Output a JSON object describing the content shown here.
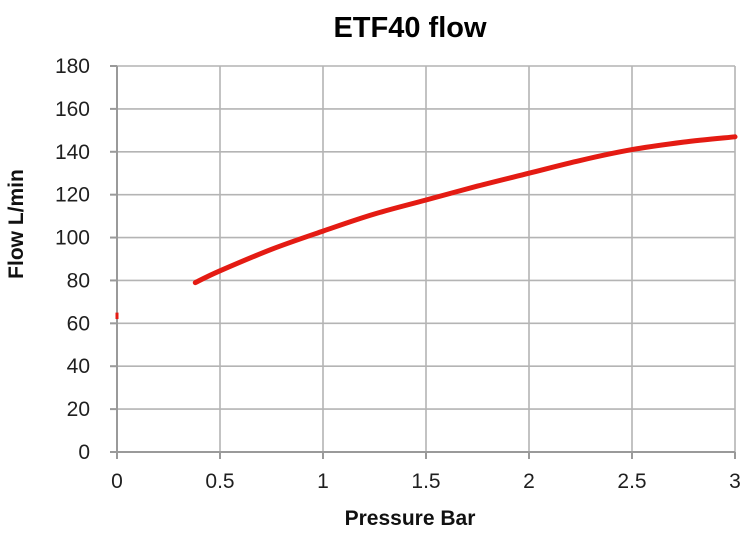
{
  "page": {
    "background": "#ffffff"
  },
  "colors": {
    "curve": "#e41b13",
    "grid": "#b4b4b4",
    "axis": "#9a9a9a",
    "tick_text": "#1f1f1f",
    "title_text": "#000000"
  },
  "chart_data": {
    "type": "line",
    "title": "ETF40 flow",
    "xlabel": "Pressure Bar",
    "ylabel": "Flow L/min",
    "xlim": [
      0,
      3
    ],
    "ylim": [
      0,
      180
    ],
    "grid": true,
    "legend": "none",
    "x_ticks": {
      "values": [
        0,
        0.5,
        1,
        1.5,
        2,
        2.5,
        3
      ],
      "labels": [
        "0",
        "0.5",
        "1",
        "1.5",
        "2",
        "2.5",
        "3"
      ]
    },
    "y_ticks": {
      "values": [
        0,
        20,
        40,
        60,
        80,
        100,
        120,
        140,
        160,
        180
      ],
      "labels": [
        "0",
        "20",
        "40",
        "60",
        "80",
        "100",
        "120",
        "140",
        "160",
        "180"
      ]
    },
    "series": [
      {
        "name": "ETF40 flow",
        "color": "#e41b13",
        "x": [
          0.38,
          0.5,
          0.75,
          1.0,
          1.25,
          1.5,
          1.75,
          2.0,
          2.25,
          2.5,
          2.75,
          3.0
        ],
        "y": [
          79,
          84.5,
          94.5,
          103,
          111,
          117.5,
          124,
          130,
          136,
          141,
          144.5,
          147
        ]
      }
    ],
    "stray_mark": {
      "x": 0,
      "y_from": 62,
      "y_to": 65,
      "color": "#e41b13"
    }
  }
}
